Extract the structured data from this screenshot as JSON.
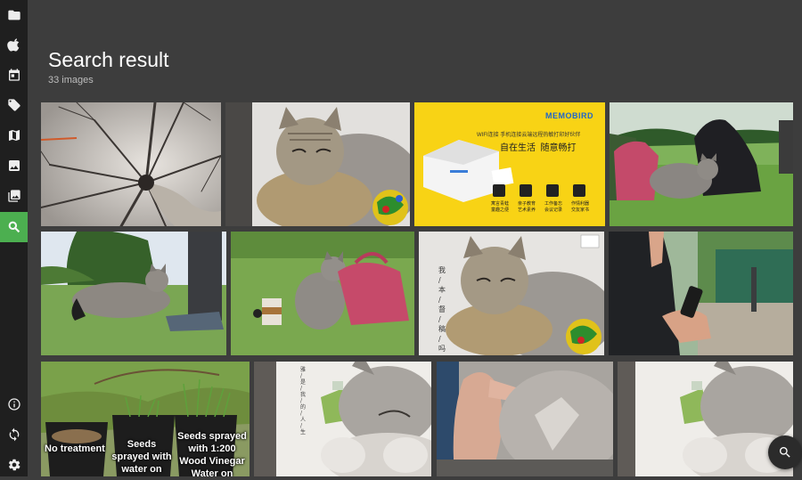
{
  "header": {
    "title": "Search result",
    "subtitle": "33 images"
  },
  "sidebar": {
    "items": [
      {
        "icon": "folder-icon"
      },
      {
        "icon": "apple-icon"
      },
      {
        "icon": "calendar-icon"
      },
      {
        "icon": "tag-icon"
      },
      {
        "icon": "map-icon"
      },
      {
        "icon": "image-icon"
      },
      {
        "icon": "photo-library-icon"
      },
      {
        "icon": "search-icon",
        "active": true
      }
    ],
    "bottom_items": [
      {
        "icon": "info-icon"
      },
      {
        "icon": "sync-icon"
      },
      {
        "icon": "settings-icon"
      }
    ]
  },
  "printer_ad": {
    "brand": "MEMOBIRD",
    "tagline": "WIFI连接 手机连接云端远程热敏打印好伙伴",
    "slogan": "自在生活  随意畅打",
    "features": [
      "寓言青蛙\n童趣之便",
      "亲子教育\n艺术素养",
      "工作备忘\n会议记录",
      "作情利器\n交友家书"
    ]
  },
  "stamp_text": "我 / 本 / 督 / 稿 / 吗",
  "poster_text": "雅 / 是 / 我 / 的 / 人 / 生",
  "grass_labels": {
    "no_treatment": "No treatment",
    "seeds_water": "Seeds\nsprayed with\nwater on",
    "seeds_vinegar": "Seeds sprayed\nwith 1:200\nWood Vinegar\nWater on"
  },
  "accent_color": "#4caf50",
  "fab": {
    "icon": "search-icon"
  }
}
